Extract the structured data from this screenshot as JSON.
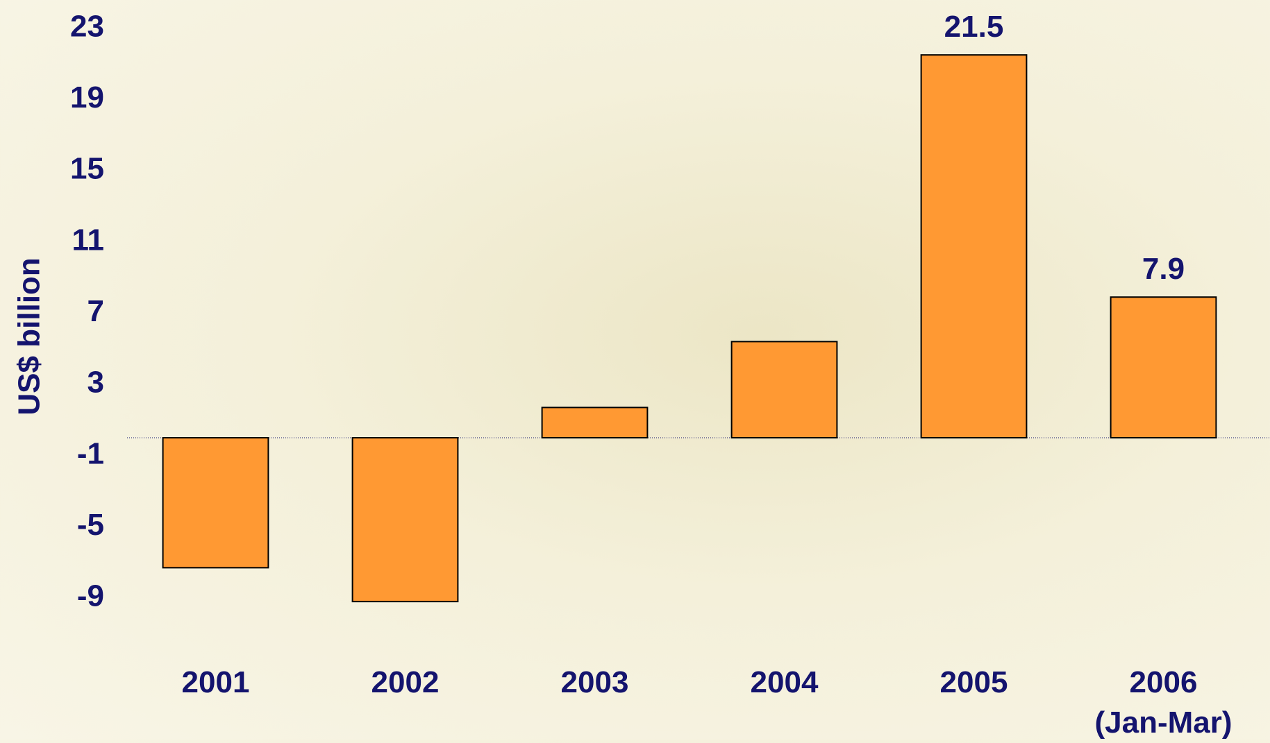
{
  "chart_data": {
    "type": "bar",
    "y_label": "US$ billion",
    "categories": [
      "2001",
      "2002",
      "2003",
      "2004",
      "2005",
      "2006 (Jan-Mar)"
    ],
    "values": [
      -7.3,
      -9.2,
      1.7,
      5.4,
      21.5,
      7.9
    ],
    "value_labels": [
      null,
      null,
      null,
      null,
      "21.5",
      "7.9"
    ],
    "color": "#ff9933",
    "ylim": [
      -12,
      24
    ],
    "yticks": [
      23,
      19,
      15,
      11,
      7,
      3,
      -1,
      -5,
      -9
    ],
    "grid": false
  }
}
